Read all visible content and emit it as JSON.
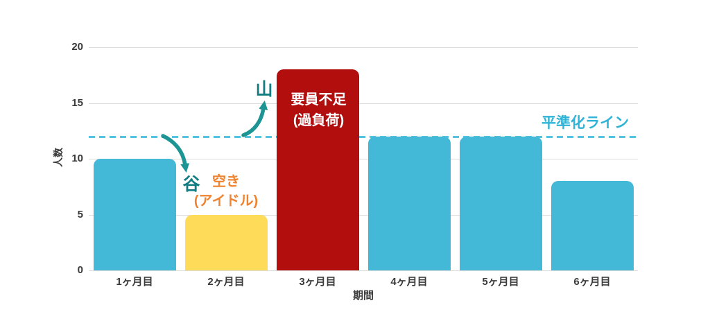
{
  "chart_data": {
    "type": "bar",
    "categories": [
      "1ヶ月目",
      "2ヶ月目",
      "3ヶ月目",
      "4ヶ月目",
      "5ヶ月目",
      "6ヶ月目"
    ],
    "values": [
      10,
      5,
      18,
      12,
      12,
      8
    ],
    "bar_colors": [
      "#44b8d7",
      "#fedc5a",
      "#b20e0e",
      "#44b8d7",
      "#44b8d7",
      "#44b8d7"
    ],
    "title": "",
    "xlabel": "期間",
    "ylabel": "人数",
    "ylim": [
      0,
      20
    ],
    "yticks": [
      0,
      5,
      10,
      15,
      20
    ],
    "grid": true,
    "legend": false,
    "reference_line": {
      "value": 12,
      "label": "平準化ライン",
      "style": "dashed",
      "color": "#56c2e1",
      "label_color": "#2fb4d8"
    },
    "annotations": {
      "peak": {
        "text": "山",
        "color": "#117c82"
      },
      "valley": {
        "text": "谷",
        "color": "#117c82"
      },
      "idle": {
        "lines": [
          "空き",
          "(アイドル)"
        ],
        "color": "#f0832f"
      },
      "overload": {
        "lines": [
          "要員不足",
          "(過負荷)"
        ],
        "color": "#ffffff"
      }
    }
  },
  "palette": {
    "arrow_teal": "#1e9595",
    "grid_gray": "#dcdcdc",
    "tick_text": "#3a3a3a"
  }
}
